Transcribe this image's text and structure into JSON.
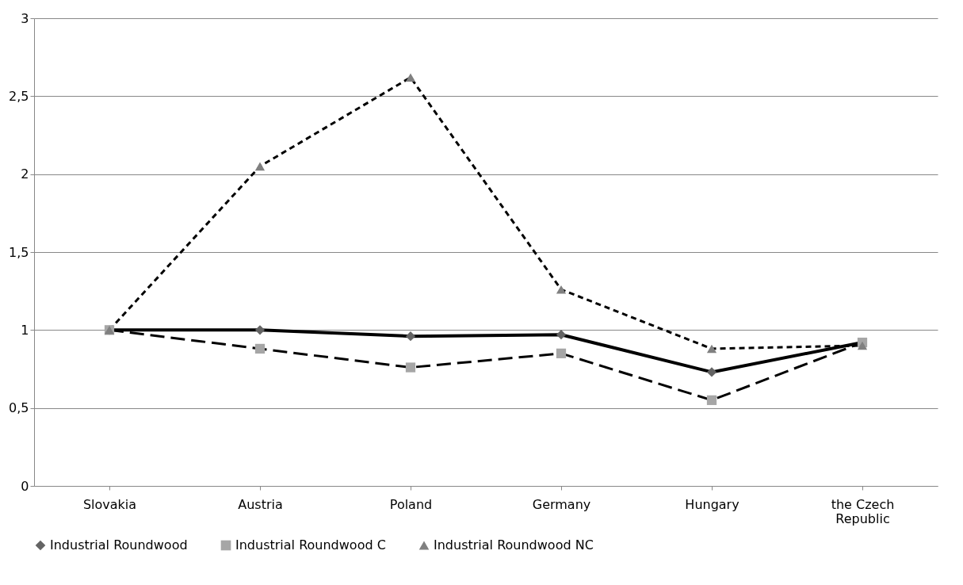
{
  "chart_data": {
    "type": "line",
    "categories": [
      "Slovakia",
      "Austria",
      "Poland",
      "Germany",
      "Hungary",
      "the Czech Republic"
    ],
    "series": [
      {
        "name": "Industrial Roundwood",
        "color": "#646464",
        "marker": "diamond",
        "line_style": "solid",
        "values": [
          1.0,
          1.0,
          0.96,
          0.97,
          0.73,
          0.92
        ]
      },
      {
        "name": "Industrial Roundwood C",
        "color": "#a6a6a6",
        "marker": "square",
        "line_style": "dashed",
        "values": [
          1.0,
          0.88,
          0.76,
          0.85,
          0.55,
          0.92
        ]
      },
      {
        "name": "Industrial Roundwood NC",
        "color": "#808080",
        "marker": "triangle",
        "line_style": "dotted",
        "values": [
          1.0,
          2.05,
          2.62,
          1.26,
          0.88,
          0.9
        ]
      }
    ],
    "ylim": [
      0,
      3
    ],
    "yticks": [
      0,
      {
        "value": 0.5,
        "label": "0,5"
      },
      1,
      {
        "value": 1.5,
        "label": "1,5"
      },
      2,
      {
        "value": 2.5,
        "label": "2,5"
      },
      3
    ],
    "grid": "y",
    "legend": "bottom"
  }
}
